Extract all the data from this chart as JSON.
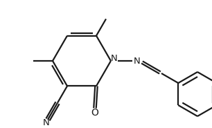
{
  "bg_color": "#ffffff",
  "line_color": "#1a1a1a",
  "line_width": 1.6,
  "fig_width": 3.06,
  "fig_height": 1.85,
  "dpi": 100,
  "xlim": [
    0,
    306
  ],
  "ylim": [
    0,
    185
  ]
}
